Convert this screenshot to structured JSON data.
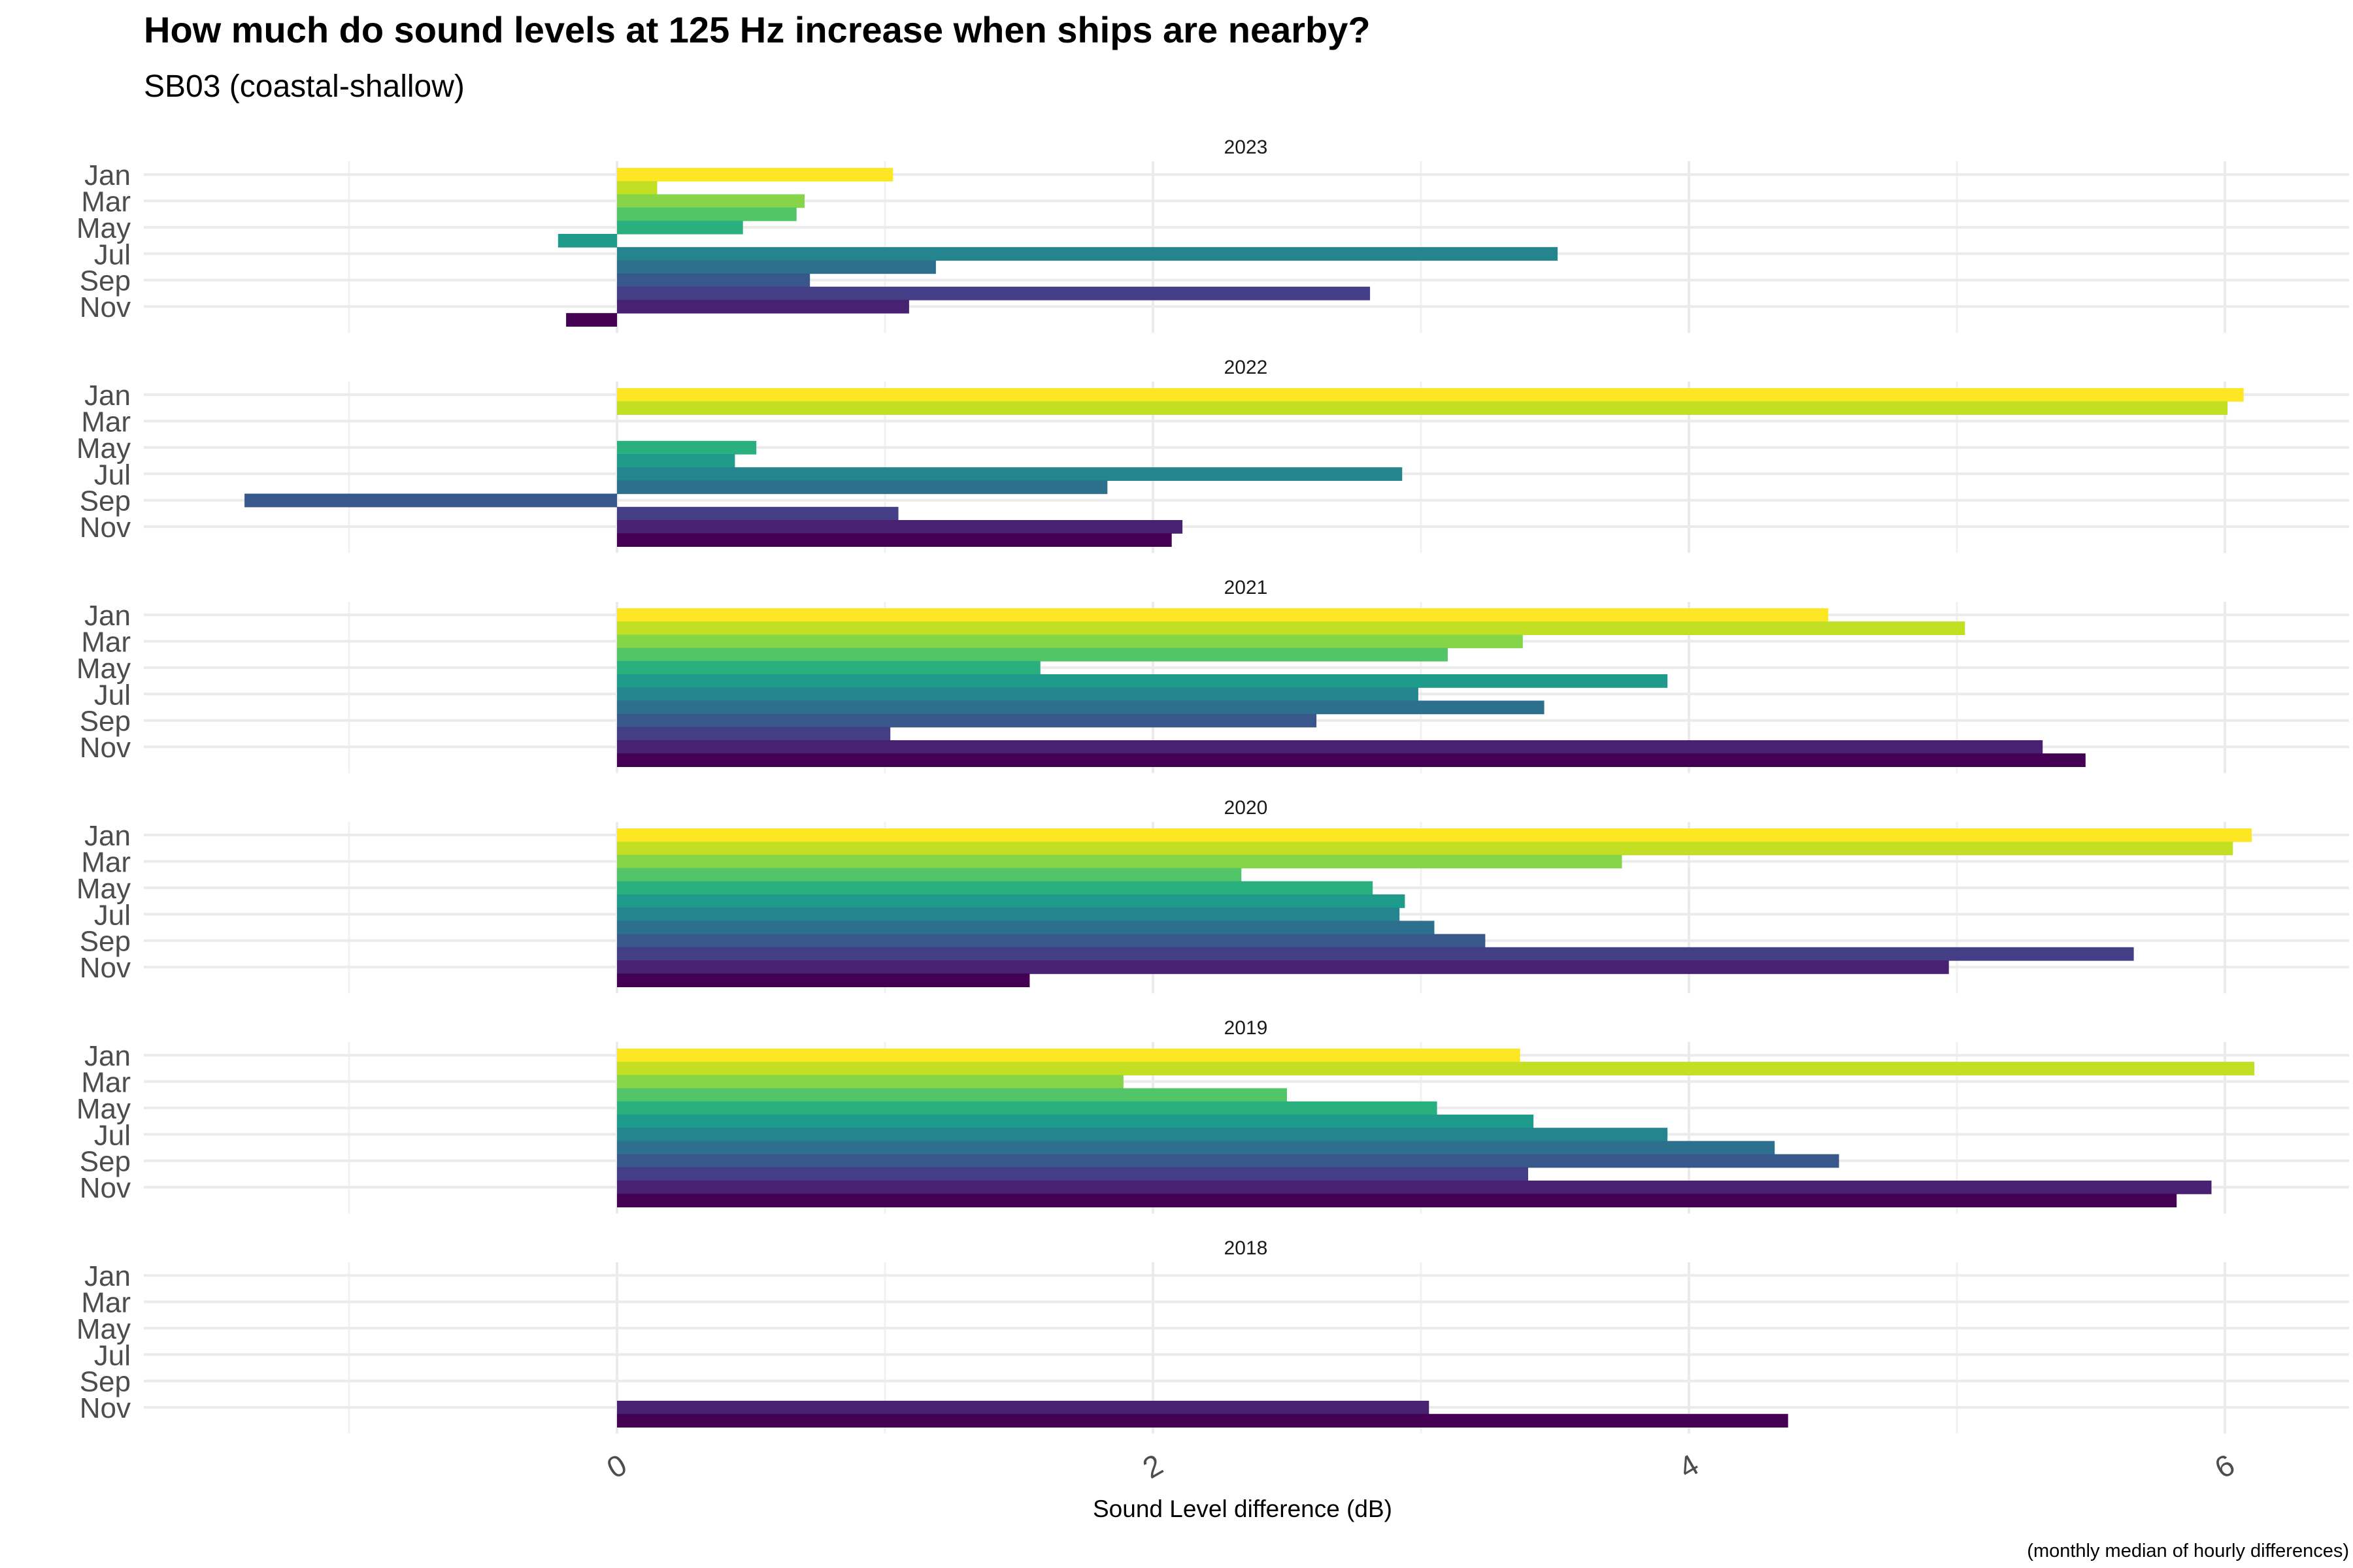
{
  "chart_data": {
    "type": "bar",
    "title": "How much do sound levels at 125 Hz increase when ships are nearby?",
    "subtitle": "SB03 (coastal-shallow)",
    "xlabel": "Sound Level difference (dB)",
    "caption": "(monthly median of hourly differences)",
    "orientation": "horizontal",
    "xlim": [
      -1.78,
      6.4
    ],
    "x_ticks": [
      0,
      2,
      4,
      6
    ],
    "y_tick_labels": [
      "Jan",
      "Mar",
      "May",
      "Jul",
      "Sep",
      "Nov"
    ],
    "months": [
      "Jan",
      "Feb",
      "Mar",
      "Apr",
      "May",
      "Jun",
      "Jul",
      "Aug",
      "Sep",
      "Oct",
      "Nov",
      "Dec"
    ],
    "month_colors": [
      "#FDE725",
      "#C2DF23",
      "#86D549",
      "#52C569",
      "#2AB07F",
      "#1E9B8A",
      "#25858E",
      "#2D708E",
      "#38588C",
      "#433E85",
      "#482173",
      "#440154"
    ],
    "grid": true,
    "legend": "none",
    "facets": [
      {
        "label": "2023",
        "values": [
          1.03,
          0.15,
          0.7,
          0.67,
          0.47,
          -0.22,
          3.51,
          1.19,
          0.72,
          2.81,
          1.09,
          -0.19
        ]
      },
      {
        "label": "2022",
        "values": [
          6.07,
          6.01,
          null,
          null,
          0.52,
          0.44,
          2.93,
          1.83,
          -1.39,
          1.05,
          2.11,
          2.07
        ]
      },
      {
        "label": "2021",
        "values": [
          4.52,
          5.03,
          3.38,
          3.1,
          1.58,
          3.92,
          2.99,
          3.46,
          2.61,
          1.02,
          5.32,
          5.48
        ]
      },
      {
        "label": "2020",
        "values": [
          6.1,
          6.03,
          3.75,
          2.33,
          2.82,
          2.94,
          2.92,
          3.05,
          3.24,
          5.66,
          4.97,
          1.54
        ]
      },
      {
        "label": "2019",
        "values": [
          3.37,
          6.11,
          1.89,
          2.5,
          3.06,
          3.42,
          3.92,
          4.32,
          4.56,
          3.4,
          5.95,
          5.82
        ]
      },
      {
        "label": "2018",
        "values": [
          null,
          null,
          null,
          null,
          null,
          null,
          null,
          null,
          null,
          null,
          3.03,
          4.37
        ]
      }
    ]
  }
}
